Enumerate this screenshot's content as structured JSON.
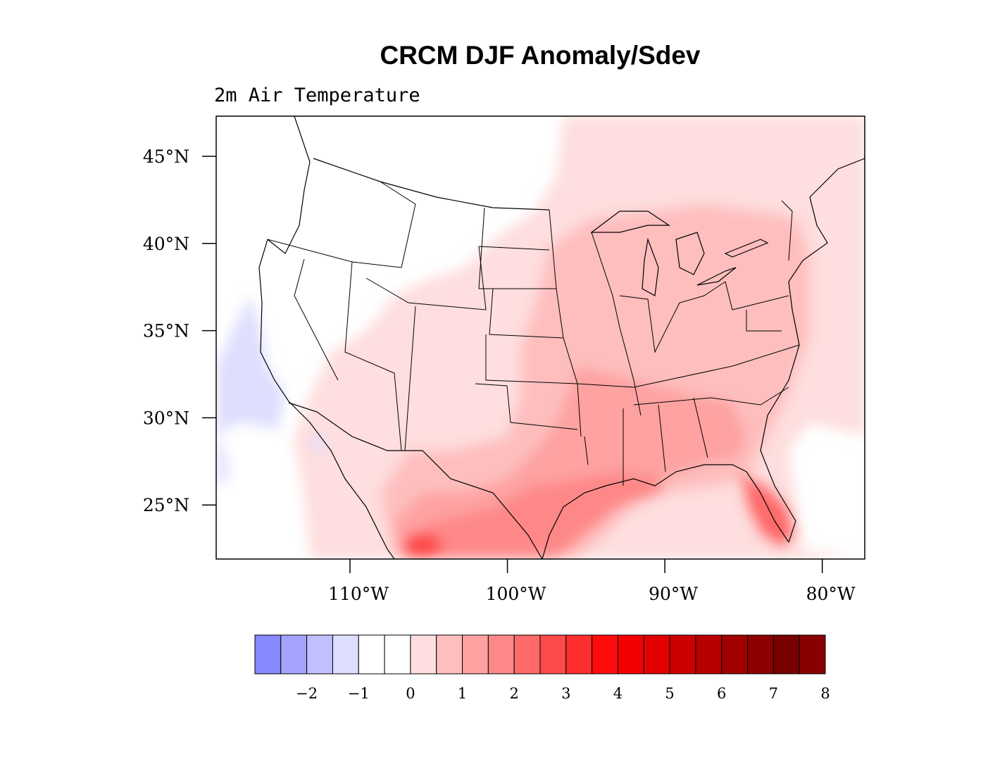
{
  "title": "CRCM DJF Anomaly/Sdev",
  "subtitle": "2m Air Temperature",
  "map": {
    "projection": "lat-lon",
    "lon_range": [
      -118.5,
      -77.3
    ],
    "lat_range": [
      21.9,
      47.3
    ],
    "lat_ticks": [
      {
        "value": 45,
        "label": "45°N"
      },
      {
        "value": 40,
        "label": "40°N"
      },
      {
        "value": 35,
        "label": "35°N"
      },
      {
        "value": 30,
        "label": "30°N"
      },
      {
        "value": 25,
        "label": "25°N"
      }
    ],
    "lon_ticks": [
      {
        "value": -110,
        "label": "110°W"
      },
      {
        "value": -100,
        "label": "100°W"
      },
      {
        "value": -90,
        "label": "90°W"
      },
      {
        "value": -80,
        "label": "80°W"
      }
    ],
    "background_color": "#ffffff",
    "border_color": "#000000"
  },
  "colorbar": {
    "colors": [
      "#8888ff",
      "#a4a4ff",
      "#c0c0ff",
      "#dedefe",
      "#ffffff",
      "#ffffff",
      "#fedede",
      "#febebe",
      "#fea2a2",
      "#fe8888",
      "#fe6a6a",
      "#fe4a4a",
      "#fe2e2e",
      "#fe0c0c",
      "#f40000",
      "#e20000",
      "#cc0000",
      "#b80000",
      "#a00000",
      "#8c0000",
      "#780000",
      "#880000"
    ],
    "labels": [
      "−2",
      "−1",
      "0",
      "1",
      "2",
      "3",
      "4",
      "5",
      "6",
      "7",
      "8"
    ]
  }
}
